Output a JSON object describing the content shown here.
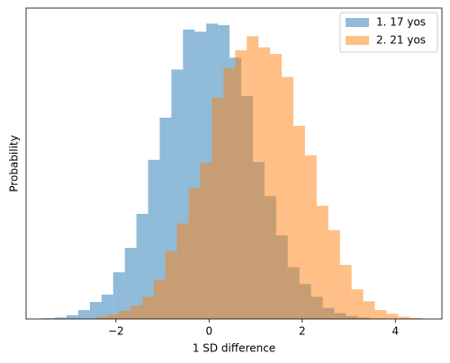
{
  "chart_data": {
    "type": "histogram",
    "xlabel": "1 SD difference",
    "ylabel": "Probability",
    "xlim": [
      -3.93,
      5.0
    ],
    "ylim": [
      0,
      0.42
    ],
    "xticks": [
      {
        "value": -2,
        "label": "−2"
      },
      0,
      2,
      4
    ],
    "legend": "upper right",
    "alpha": 0.5,
    "series": [
      {
        "name": "1. 17 yos",
        "color": "#1f77b4",
        "bins": [
          -3.56,
          -3.31,
          -3.06,
          -2.81,
          -2.56,
          -2.31,
          -2.06,
          -1.81,
          -1.56,
          -1.31,
          -1.06,
          -0.81,
          -0.56,
          -0.31,
          -0.06,
          0.19,
          0.44,
          0.69,
          0.94,
          1.19,
          1.44,
          1.69,
          1.94,
          2.19,
          2.44,
          2.69,
          2.94,
          3.19,
          3.44
        ],
        "values": [
          0.001,
          0.002,
          0.005,
          0.012,
          0.023,
          0.033,
          0.063,
          0.096,
          0.142,
          0.215,
          0.272,
          0.337,
          0.391,
          0.388,
          0.399,
          0.397,
          0.353,
          0.301,
          0.212,
          0.166,
          0.113,
          0.07,
          0.047,
          0.03,
          0.015,
          0.008,
          0.004,
          0.002
        ]
      },
      {
        "name": "2. 21 yos",
        "color": "#ff7f0e",
        "bins": [
          -2.44,
          -2.19,
          -1.94,
          -1.69,
          -1.44,
          -1.19,
          -0.94,
          -0.69,
          -0.44,
          -0.19,
          0.06,
          0.31,
          0.56,
          0.81,
          1.06,
          1.31,
          1.56,
          1.81,
          2.06,
          2.31,
          2.56,
          2.81,
          3.06,
          3.31,
          3.56,
          3.81,
          4.06,
          4.31,
          4.56
        ],
        "values": [
          0.003,
          0.006,
          0.011,
          0.018,
          0.03,
          0.053,
          0.092,
          0.129,
          0.177,
          0.211,
          0.299,
          0.339,
          0.363,
          0.382,
          0.367,
          0.358,
          0.327,
          0.261,
          0.221,
          0.153,
          0.12,
          0.073,
          0.04,
          0.024,
          0.012,
          0.007,
          0.003,
          0.0015
        ]
      }
    ]
  }
}
